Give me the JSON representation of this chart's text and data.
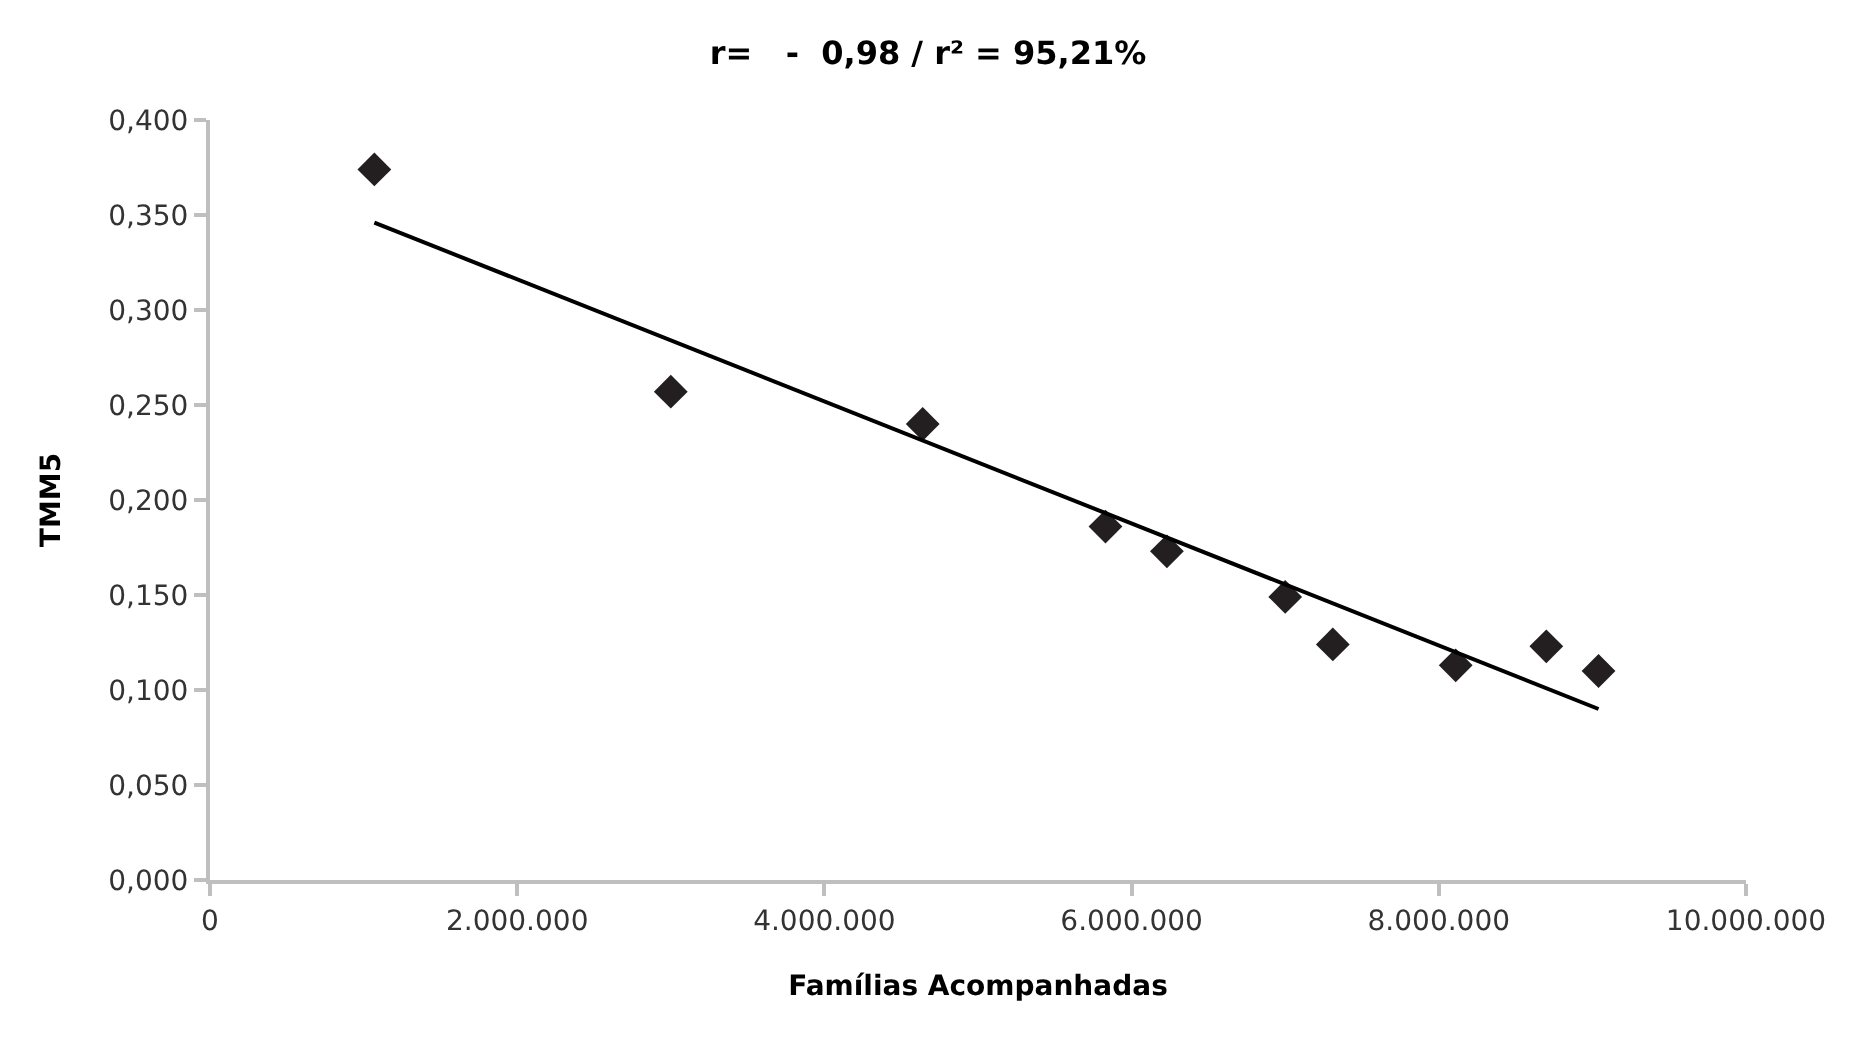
{
  "chart_data": {
    "type": "scatter",
    "title": "r=   -  0,98 / r² = 95,21%",
    "xlabel": "Famílias Acompanhadas",
    "ylabel": "TMM5",
    "series": [
      {
        "color": "#231f20",
        "marker": "diamond",
        "x": [
          1070000,
          3000000,
          4640000,
          5830000,
          6230000,
          7000000,
          7310000,
          8110000,
          8700000,
          9040000
        ],
        "values": [
          0.374,
          0.257,
          0.24,
          0.186,
          0.173,
          0.149,
          0.124,
          0.113,
          0.123,
          0.11
        ]
      },
      {
        "type": "line",
        "color": "#000000",
        "marker": "none",
        "line_style": "solid",
        "x": [
          1070000,
          9040000
        ],
        "values": [
          0.346,
          0.09
        ]
      }
    ],
    "xlim": [
      0,
      10000000
    ],
    "xticks": [
      0,
      {
        "value": 2000000,
        "label": "2.000.000"
      },
      {
        "value": 4000000,
        "label": "4.000.000"
      },
      {
        "value": 6000000,
        "label": "6.000.000"
      },
      {
        "value": 8000000,
        "label": "8.000.000"
      },
      {
        "value": 10000000,
        "label": "10.000.000"
      }
    ],
    "ylim": [
      0,
      0.4
    ],
    "yticks": [
      {
        "value": 0,
        "label": "0,000"
      },
      {
        "value": 0.05,
        "label": "0,050"
      },
      {
        "value": 0.1,
        "label": "0,100"
      },
      {
        "value": 0.15,
        "label": "0,150"
      },
      {
        "value": 0.2,
        "label": "0,200"
      },
      {
        "value": 0.25,
        "label": "0,250"
      },
      {
        "value": 0.3,
        "label": "0,300"
      },
      {
        "value": 0.35,
        "label": "0,350"
      },
      {
        "value": 0.4,
        "label": "0,400"
      }
    ],
    "grid": false,
    "legend": false
  }
}
